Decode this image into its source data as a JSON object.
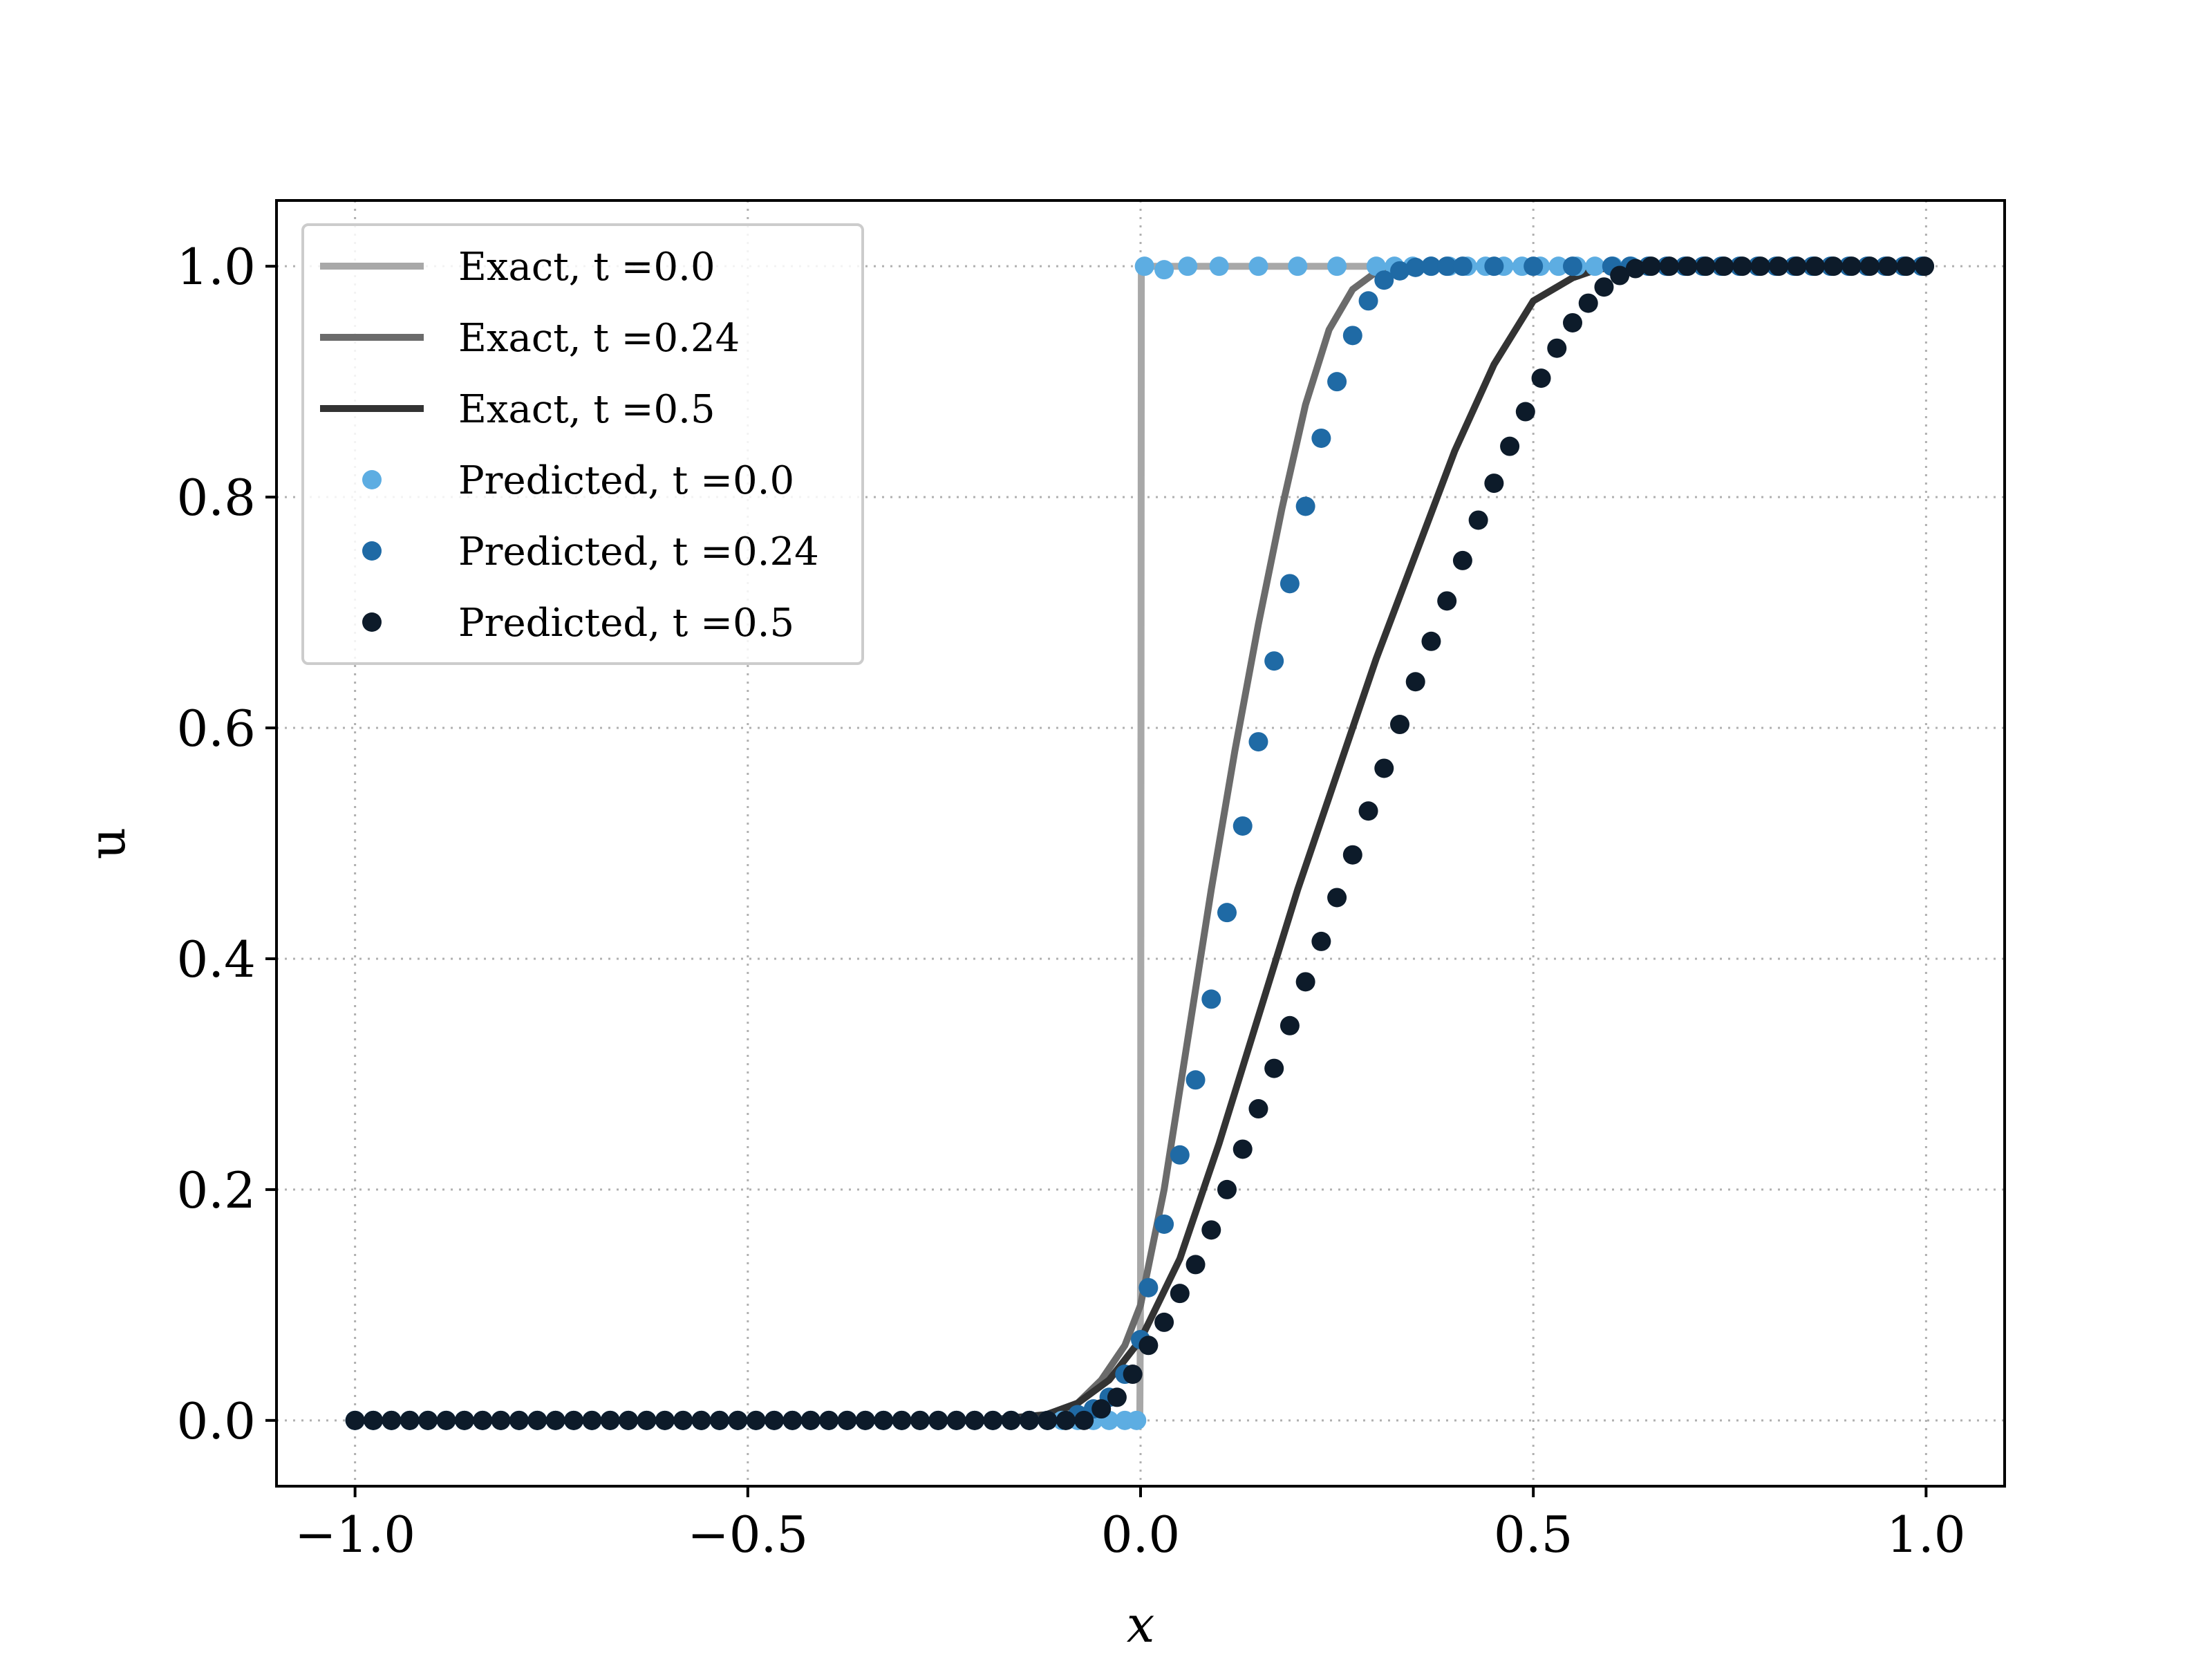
{
  "chart_data": {
    "type": "line",
    "title": "",
    "xlabel": "x",
    "ylabel": "u",
    "xlim": [
      -1.1,
      1.1
    ],
    "ylim": [
      -0.057,
      1.057
    ],
    "xticks": [
      -1.0,
      -0.5,
      0.0,
      0.5,
      1.0
    ],
    "xtick_labels": [
      "−1.0",
      "−0.5",
      "0.0",
      "0.5",
      "1.0"
    ],
    "yticks": [
      0.0,
      0.2,
      0.4,
      0.6,
      0.8,
      1.0
    ],
    "ytick_labels": [
      "0.0",
      "0.2",
      "0.4",
      "0.6",
      "0.8",
      "1.0"
    ],
    "grid": true,
    "legend_position": "top-left",
    "series": [
      {
        "name": "Exact, t =0.0",
        "kind": "line",
        "color": "#a8a8a8",
        "x": [
          -1.0,
          -0.001,
          0.0,
          0.001,
          1.0
        ],
        "y": [
          0.0,
          0.0,
          0.12,
          1.0,
          1.0
        ]
      },
      {
        "name": "Exact, t =0.24",
        "kind": "line",
        "color": "#6b6b6b",
        "x": [
          -1.0,
          -0.2,
          -0.12,
          -0.08,
          -0.05,
          -0.02,
          0.0,
          0.03,
          0.06,
          0.09,
          0.12,
          0.15,
          0.18,
          0.21,
          0.24,
          0.27,
          0.3,
          0.33,
          0.36,
          0.4,
          0.5,
          1.0
        ],
        "y": [
          0.0,
          0.0,
          0.003,
          0.015,
          0.035,
          0.065,
          0.1,
          0.2,
          0.33,
          0.46,
          0.58,
          0.69,
          0.79,
          0.88,
          0.945,
          0.98,
          0.995,
          1.0,
          1.0,
          1.0,
          1.0,
          1.0
        ]
      },
      {
        "name": "Exact, t =0.5",
        "kind": "line",
        "color": "#333333",
        "x": [
          -1.0,
          -0.2,
          -0.12,
          -0.08,
          -0.04,
          0.0,
          0.05,
          0.1,
          0.15,
          0.2,
          0.25,
          0.3,
          0.35,
          0.4,
          0.45,
          0.5,
          0.55,
          0.58,
          0.61,
          0.64,
          0.7,
          1.0
        ],
        "y": [
          0.0,
          0.0,
          0.005,
          0.015,
          0.035,
          0.07,
          0.14,
          0.24,
          0.35,
          0.46,
          0.56,
          0.66,
          0.75,
          0.84,
          0.915,
          0.97,
          0.99,
          0.997,
          1.0,
          1.0,
          1.0,
          1.0
        ]
      },
      {
        "name": "Predicted, t =0.0",
        "kind": "scatter",
        "color": "#5dade2",
        "x": [
          -0.1,
          -0.08,
          -0.06,
          -0.04,
          -0.02,
          -0.005,
          0.005,
          0.03,
          0.06,
          0.1,
          0.15,
          0.2,
          0.25,
          0.3
        ],
        "y": [
          0.0,
          0.0,
          0.0,
          0.0,
          0.0,
          0.0,
          1.0,
          0.997,
          1.0,
          1.0,
          1.0,
          1.0,
          1.0,
          1.0
        ]
      },
      {
        "name": "Predicted, t =0.24",
        "kind": "scatter",
        "color": "#1f6aa5",
        "x": [
          -0.08,
          -0.06,
          -0.04,
          -0.02,
          0.0,
          0.01,
          0.03,
          0.05,
          0.07,
          0.09,
          0.11,
          0.13,
          0.15,
          0.17,
          0.19,
          0.21,
          0.23,
          0.25,
          0.27,
          0.29,
          0.31,
          0.33,
          0.35,
          0.37,
          0.39,
          0.41,
          0.45,
          0.5,
          0.55,
          0.6
        ],
        "y": [
          0.005,
          0.01,
          0.02,
          0.04,
          0.07,
          0.115,
          0.17,
          0.23,
          0.295,
          0.365,
          0.44,
          0.515,
          0.588,
          0.658,
          0.725,
          0.792,
          0.851,
          0.9,
          0.94,
          0.97,
          0.988,
          0.996,
          0.999,
          1.0,
          1.0,
          1.0,
          1.0,
          1.0,
          1.0,
          1.0
        ]
      },
      {
        "name": "Predicted, t =0.5",
        "kind": "scatter",
        "color": "#0d1b2a",
        "x": [
          -0.05,
          -0.03,
          -0.01,
          0.01,
          0.03,
          0.05,
          0.07,
          0.09,
          0.11,
          0.13,
          0.15,
          0.17,
          0.19,
          0.21,
          0.23,
          0.25,
          0.27,
          0.29,
          0.31,
          0.33,
          0.35,
          0.37,
          0.39,
          0.41,
          0.43,
          0.45,
          0.47,
          0.49,
          0.51,
          0.53,
          0.55,
          0.57,
          0.59,
          0.61,
          0.63,
          0.65
        ],
        "y": [
          0.01,
          0.02,
          0.04,
          0.065,
          0.085,
          0.11,
          0.135,
          0.165,
          0.2,
          0.235,
          0.27,
          0.305,
          0.342,
          0.38,
          0.415,
          0.453,
          0.49,
          0.528,
          0.565,
          0.603,
          0.64,
          0.675,
          0.71,
          0.745,
          0.78,
          0.812,
          0.844,
          0.874,
          0.903,
          0.929,
          0.951,
          0.968,
          0.982,
          0.992,
          0.998,
          1.0
        ]
      }
    ]
  }
}
